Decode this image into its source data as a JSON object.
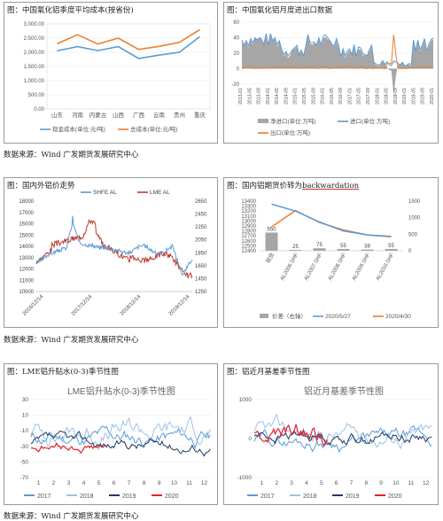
{
  "titles": {
    "p1": "图：中国氧化铝季度平均成本(按省份)",
    "p2": "图：中国氧化铝月度进出口数据",
    "p3": "图：国内外铝价走势",
    "p4_prefix": "图：国内铝期货价转为",
    "p4_word": "backwardation",
    "p5": "图：LME铝升贴水(0-3)季节性图",
    "p6": "图：铝近月基差季节性图"
  },
  "sources": [
    "数据来源：Wind 广发期货发展研究中心",
    "数据来源：Wind 广发期货发展研究中心",
    "数据来源：Wind 广发期货发展研究中心"
  ],
  "chart_data": [
    {
      "id": "alumina_cost",
      "type": "line",
      "title": "图：中国氧化铝季度平均成本(按省份)",
      "categories": [
        "山东",
        "河南",
        "内蒙古",
        "山西",
        "广西",
        "云南",
        "贵州",
        "重庆"
      ],
      "ylim": [
        0,
        3000
      ],
      "yticks": [
        "0.00",
        "500.00",
        "1,000.00",
        "1,500.00",
        "2,000.00",
        "2,500.00",
        "3,000.00"
      ],
      "series": [
        {
          "name": "现金成本(单位:元/吨)",
          "color": "#5b9bd5",
          "values": [
            2050,
            2200,
            2060,
            2200,
            1780,
            1900,
            2000,
            2550
          ]
        },
        {
          "name": "总成本(单位:元/吨)",
          "color": "#ed7d31",
          "values": [
            2300,
            2620,
            2290,
            2500,
            2100,
            2210,
            2350,
            2800
          ]
        }
      ],
      "legend": "bottom"
    },
    {
      "id": "alumina_trade",
      "type": "area",
      "title": "图：中国氧化铝月度进出口数据",
      "ylim": [
        -20,
        60
      ],
      "yticks": [
        "-20",
        "0",
        "20",
        "40",
        "60"
      ],
      "xticks": [
        "2013-01",
        "2013-05",
        "2013-09",
        "2014-01",
        "2014-05",
        "2014-09",
        "2015-01",
        "2015-05",
        "2015-09",
        "2016-01",
        "2016-05",
        "2016-09",
        "2017-01",
        "2017-05",
        "2017-09",
        "2018-01",
        "2018-05",
        "2018-09",
        "2019-01",
        "2019-05",
        "2019-09",
        "2020-01"
      ],
      "series": [
        {
          "name": "净进口(单位:万吨)",
          "color": "#a6a6a6"
        },
        {
          "name": "进口(单位:万吨)",
          "color": "#5b9bd5"
        },
        {
          "name": "出口(单位:万吨)",
          "color": "#ed7d31"
        }
      ],
      "legend": "bottom"
    },
    {
      "id": "al_price",
      "type": "line",
      "title": "图：国内外铝价走势",
      "left_ylim": [
        10000,
        18000
      ],
      "left_yticks": [
        "10000",
        "11000",
        "12000",
        "13000",
        "14000",
        "15000",
        "16000",
        "17000",
        "18000"
      ],
      "right_ylim": [
        1250,
        2650
      ],
      "right_yticks": [
        "1250",
        "1450",
        "1650",
        "1850",
        "2050",
        "2250",
        "2450",
        "2650"
      ],
      "xticks": [
        "2016/12/14",
        "2017/12/14",
        "2018/12/14",
        "2019/12/14"
      ],
      "series": [
        {
          "name": "SHFE AL",
          "color": "#5b9bd5",
          "axis": "left"
        },
        {
          "name": "LME AL",
          "color": "#c0392b",
          "axis": "right"
        }
      ],
      "legend": "top"
    },
    {
      "id": "al_futures_curve",
      "type": "line",
      "title": "图：国内铝期货价转为backwardation",
      "categories": [
        "现货",
        "AL2006.SHF",
        "AL2007.SHF",
        "AL2008.SHF",
        "AL2009.SHF",
        "AL2010.SHF"
      ],
      "left_ylim": [
        12400,
        13400
      ],
      "left_yticks": [
        "12400",
        "12500",
        "12600",
        "12700",
        "12800",
        "12900",
        "13000",
        "13100",
        "13200",
        "13300",
        "13400"
      ],
      "right_ylim": [
        0,
        1500
      ],
      "right_yticks": [
        "0",
        "500",
        "1000",
        "1500"
      ],
      "series": [
        {
          "name": "价差（右轴）",
          "type": "bar",
          "color": "#a6a6a6",
          "values": [
            550,
            25,
            75,
            55,
            38,
            55
          ]
        },
        {
          "name": "2020/5/27",
          "color": "#5b9bd5",
          "values": [
            13340,
            13200,
            12980,
            12800,
            12720,
            12690
          ]
        },
        {
          "name": "2020/4/30",
          "color": "#ed7d31",
          "values": [
            12880,
            13210,
            12970,
            12820,
            12720,
            12680
          ]
        }
      ],
      "data_labels": [
        "550",
        "25",
        "75",
        "55",
        "38",
        "55"
      ],
      "legend": "bottom"
    },
    {
      "id": "lme_spread",
      "type": "line",
      "title": "LME铝升贴水(0-3)季节性图",
      "ylim": [
        -70,
        30
      ],
      "yticks": [
        "-70",
        "-50",
        "-30",
        "-10",
        "10",
        "30"
      ],
      "xticks": [
        "1",
        "2",
        "3",
        "4",
        "5",
        "6",
        "7",
        "8",
        "9",
        "10",
        "11",
        "12"
      ],
      "series": [
        {
          "name": "2017",
          "color": "#5b9bd5"
        },
        {
          "name": "2018",
          "color": "#9dc3e6"
        },
        {
          "name": "2019",
          "color": "#1f3864"
        },
        {
          "name": "2020",
          "color": "#e0202a"
        }
      ],
      "legend": "bottom"
    },
    {
      "id": "basis",
      "type": "line",
      "title": "铝近月基差季节性图",
      "ylim": [
        -1000,
        1000
      ],
      "yticks": [
        "-1000",
        "0",
        "1000"
      ],
      "xticks": [
        "1",
        "2",
        "3",
        "4",
        "5",
        "6",
        "7",
        "8",
        "9",
        "10",
        "11",
        "12"
      ],
      "series": [
        {
          "name": "2017",
          "color": "#5b9bd5"
        },
        {
          "name": "2018",
          "color": "#9dc3e6"
        },
        {
          "name": "2019",
          "color": "#1f3864"
        },
        {
          "name": "2020",
          "color": "#e0202a"
        }
      ],
      "legend": "bottom"
    }
  ]
}
